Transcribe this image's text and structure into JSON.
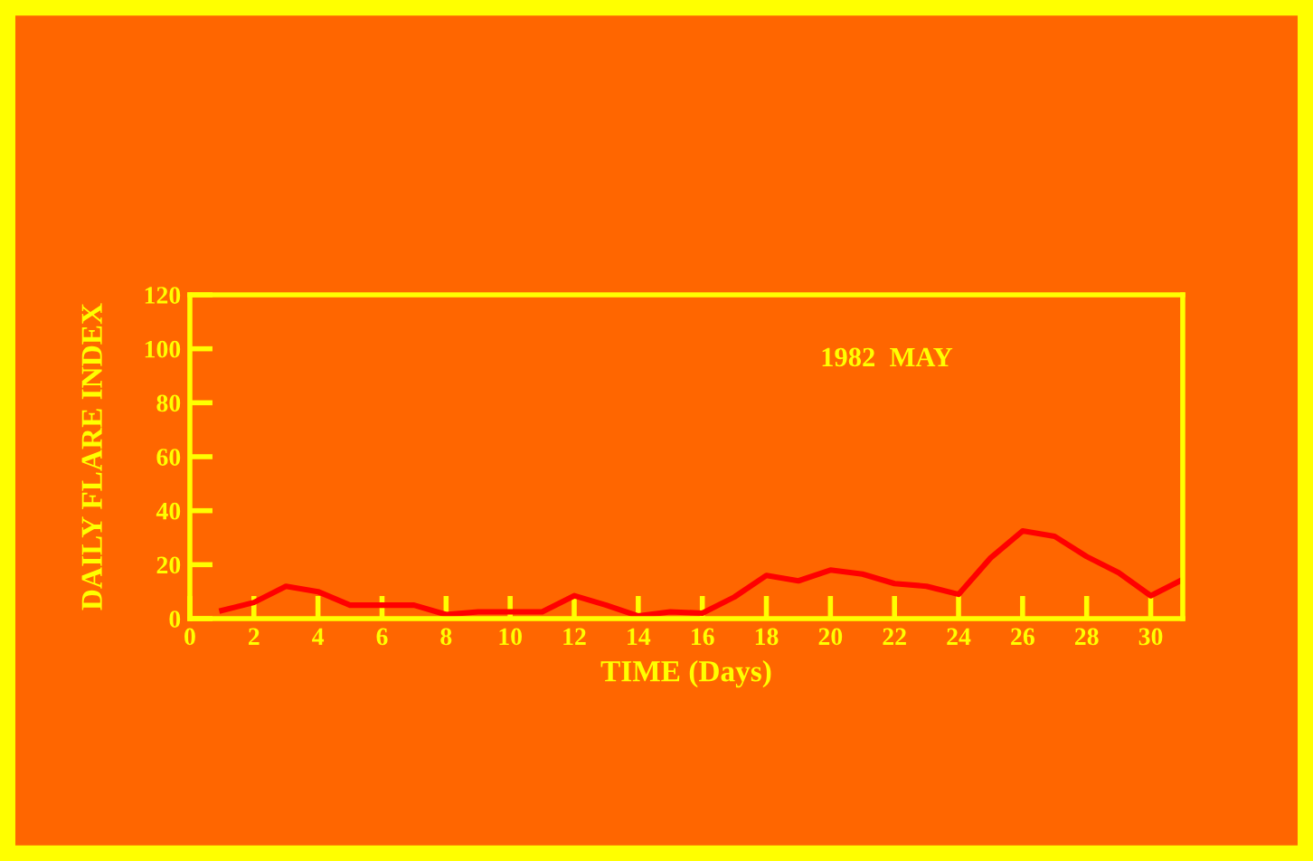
{
  "chart_data": {
    "type": "line",
    "xlabel": "TIME (Days)",
    "ylabel": "DAILY FLARE INDEX",
    "annotations": [
      "1982  MAY"
    ],
    "x": [
      1,
      2,
      3,
      4,
      5,
      6,
      7,
      8,
      9,
      10,
      11,
      12,
      13,
      14,
      15,
      16,
      17,
      18,
      19,
      20,
      21,
      22,
      23,
      24,
      25,
      26,
      27,
      28,
      29,
      30,
      31
    ],
    "series": [
      {
        "color": "#ff0000",
        "values": [
          3,
          6,
          12,
          10,
          5,
          5,
          5,
          1.5,
          2.5,
          2.5,
          2.5,
          8.5,
          5,
          1,
          2.5,
          2,
          8,
          16,
          14,
          18,
          16.5,
          13,
          12,
          9,
          22.5,
          32.5,
          30.5,
          23,
          17,
          8.5,
          14.5
        ]
      }
    ],
    "xlim": [
      0,
      31
    ],
    "xticks": [
      0,
      2,
      4,
      6,
      8,
      10,
      12,
      14,
      16,
      18,
      20,
      22,
      24,
      26,
      28,
      30
    ],
    "ylim": [
      0,
      120
    ],
    "yticks": [
      0,
      20,
      40,
      60,
      80,
      100,
      120
    ],
    "grid": false,
    "marker": "none",
    "line_style": "solid"
  }
}
